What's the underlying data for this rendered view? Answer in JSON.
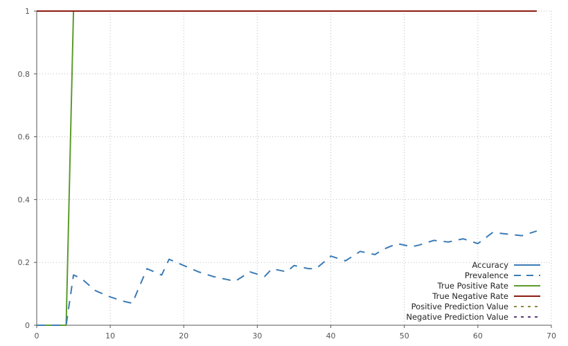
{
  "chart_data": {
    "type": "line",
    "title": "",
    "xlabel": "",
    "ylabel": "",
    "xlim": [
      0,
      70
    ],
    "ylim": [
      0,
      1
    ],
    "xticks": [
      0,
      10,
      20,
      30,
      40,
      50,
      60,
      70
    ],
    "yticks": [
      0,
      0.2,
      0.4,
      0.6,
      0.8,
      1
    ],
    "grid": true,
    "legend_position": "bottom-right",
    "series": [
      {
        "name": "Accuracy",
        "color": "#3a7ab5",
        "style": "solid",
        "x": [
          0,
          68
        ],
        "y": [
          1,
          1
        ]
      },
      {
        "name": "Prevalence",
        "color": "#3a7ab5",
        "style": "dashed",
        "x": [
          0,
          4,
          5,
          6,
          8,
          10,
          12,
          13,
          15,
          17,
          18,
          20,
          22,
          24,
          26,
          27,
          29,
          31,
          32,
          34,
          35,
          37,
          38,
          40,
          42,
          44,
          46,
          47,
          49,
          51,
          52,
          54,
          56,
          58,
          60,
          62,
          64,
          66,
          68
        ],
        "y": [
          0,
          0,
          0.16,
          0.15,
          0.11,
          0.09,
          0.075,
          0.07,
          0.18,
          0.16,
          0.21,
          0.19,
          0.17,
          0.155,
          0.145,
          0.14,
          0.17,
          0.155,
          0.18,
          0.17,
          0.19,
          0.18,
          0.18,
          0.22,
          0.205,
          0.235,
          0.225,
          0.24,
          0.26,
          0.25,
          0.255,
          0.27,
          0.265,
          0.275,
          0.26,
          0.295,
          0.29,
          0.285,
          0.3
        ]
      },
      {
        "name": "True Positive Rate",
        "color": "#5a9a2a",
        "style": "solid",
        "x": [
          0,
          4,
          5,
          68
        ],
        "y": [
          0,
          0,
          1,
          1
        ]
      },
      {
        "name": "True Negative Rate",
        "color": "#8b1a10",
        "style": "solid",
        "x": [
          0,
          68
        ],
        "y": [
          1,
          1
        ]
      },
      {
        "name": "Positive Prediction Value",
        "color": "#8a8a3a",
        "style": "dashed",
        "x": [
          0,
          68
        ],
        "y": [
          1,
          1
        ]
      },
      {
        "name": "Negative Prediction Value",
        "color": "#5a3a7a",
        "style": "dashed",
        "x": [
          0,
          68
        ],
        "y": [
          1,
          1
        ]
      }
    ]
  }
}
